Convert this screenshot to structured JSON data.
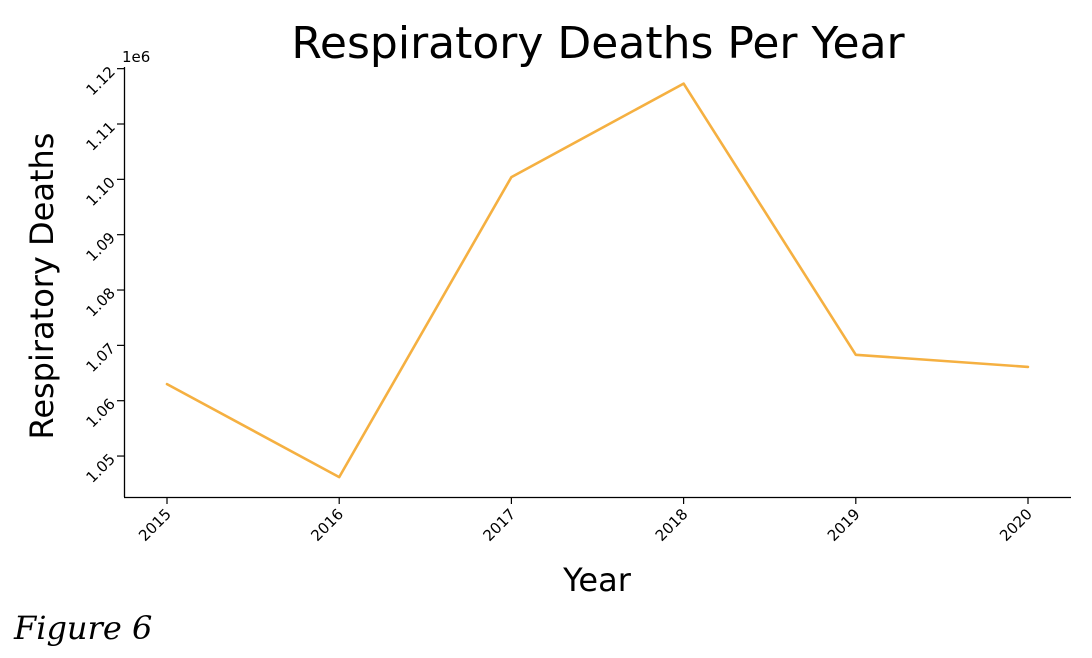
{
  "chart_data": {
    "type": "line",
    "title": "Respiratory Deaths Per Year",
    "xlabel": "Year",
    "ylabel": "Respiratory Deaths",
    "y_offset_label": "1e6",
    "categories": [
      "2015",
      "2016",
      "2017",
      "2018",
      "2019",
      "2020"
    ],
    "series": [
      {
        "values": [
          1063000,
          1046200,
          1100400,
          1117300,
          1068300,
          1066100
        ],
        "color": "#f5b041"
      }
    ],
    "ylim": [
      1042600,
      1120300
    ],
    "yticks": [
      1.05,
      1.06,
      1.07,
      1.08,
      1.09,
      1.1,
      1.11,
      1.12
    ],
    "ytick_labels": [
      "1.05",
      "1.06",
      "1.07",
      "1.08",
      "1.09",
      "1.10",
      "1.11",
      "1.12"
    ],
    "ytick_scale": 1000000,
    "grid": false,
    "spines": [
      "left",
      "bottom"
    ]
  },
  "caption": "Figure 6"
}
